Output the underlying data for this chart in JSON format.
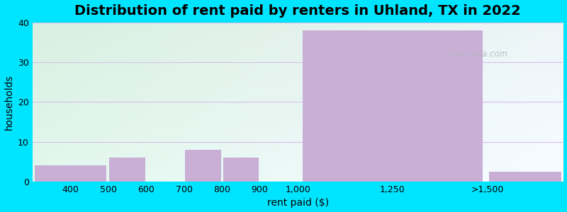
{
  "title": "Distribution of rent paid by renters in Uhland, TX in 2022",
  "xlabel": "rent paid ($)",
  "ylabel": "households",
  "tick_positions": [
    300,
    400,
    500,
    600,
    700,
    800,
    900,
    1000,
    1250,
    1500,
    1700
  ],
  "tick_labels": [
    "",
    "400",
    "500",
    "600",
    "700",
    "800",
    "900",
    "1,000",
    "1,250",
    ">1,500",
    ""
  ],
  "bin_edges": [
    300,
    500,
    600,
    700,
    800,
    900,
    1000,
    1500,
    1700
  ],
  "bin_values": [
    4,
    6,
    0,
    8,
    6,
    0,
    38,
    2.5
  ],
  "bar_color": "#c9aed6",
  "ylim": [
    0,
    40
  ],
  "yticks": [
    0,
    10,
    20,
    30,
    40
  ],
  "bg_color_topleft": "#d8f0d0",
  "bg_color_topright": "#e8f8f8",
  "bg_color_bottomleft": "#e8f8e8",
  "bg_color_bottomright": "#f0fbfb",
  "figure_bg": "#00e5ff",
  "title_fontsize": 14,
  "axis_label_fontsize": 10,
  "tick_fontsize": 9,
  "watermark_text": "City-Data.com",
  "xlim": [
    300,
    1700
  ]
}
